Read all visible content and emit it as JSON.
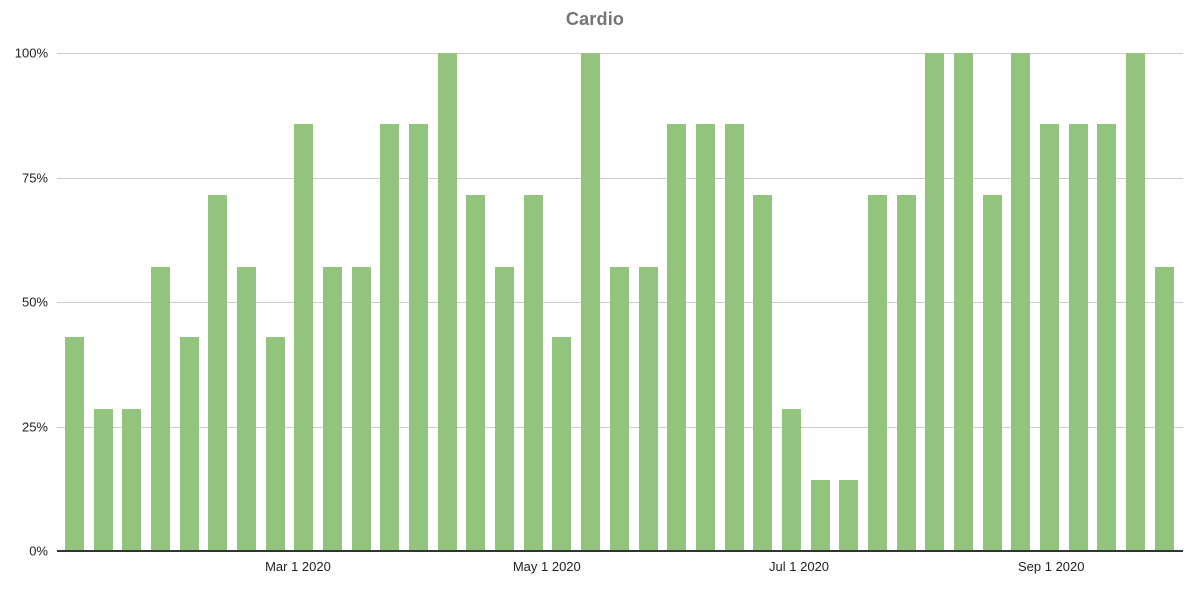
{
  "chart_data": {
    "type": "bar",
    "title": "Cardio",
    "xlabel": "",
    "ylabel": "",
    "unit": "%",
    "values": [
      42.9,
      28.6,
      28.6,
      57.1,
      42.9,
      71.4,
      57.1,
      42.9,
      85.7,
      57.1,
      57.1,
      85.7,
      85.7,
      100,
      71.4,
      57.1,
      71.4,
      42.9,
      100,
      57.1,
      57.1,
      85.7,
      85.7,
      85.7,
      71.4,
      28.6,
      14.3,
      14.3,
      71.4,
      71.4,
      100,
      100,
      71.4,
      100,
      85.7,
      85.7,
      85.7,
      100,
      57.1
    ],
    "ylim": [
      0,
      100
    ],
    "y_ticks": [
      {
        "label": "100%",
        "value": 100
      },
      {
        "label": "75%",
        "value": 75
      },
      {
        "label": "50%",
        "value": 50
      },
      {
        "label": "25%",
        "value": 25
      },
      {
        "label": "0%",
        "value": 0
      }
    ],
    "x_ticks": [
      {
        "label": "Mar 1 2020",
        "pos": 0.214
      },
      {
        "label": "May 1 2020",
        "pos": 0.435
      },
      {
        "label": "Jul 1 2020",
        "pos": 0.659
      },
      {
        "label": "Sep 1 2020",
        "pos": 0.883
      }
    ],
    "grid": true,
    "legend": "none",
    "bar_color": "#93c47d",
    "colors": {
      "title": "#757575",
      "axis_label": "#222222",
      "gridline": "#cccccc",
      "baseline": "#333333",
      "background": "#ffffff"
    }
  }
}
